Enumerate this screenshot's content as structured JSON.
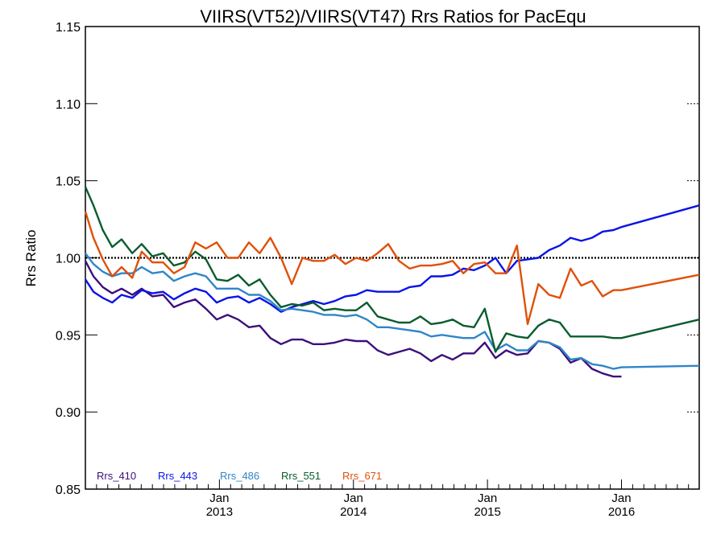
{
  "chart_data": {
    "type": "line",
    "title": "VIIRS(VT52)/VIIRS(VT47)  Rrs Ratios for PacEqu",
    "ylabel": "Rrs Ratio",
    "xlabel": "",
    "ylim": [
      0.85,
      1.15
    ],
    "xlim": [
      2012.0,
      2016.58
    ],
    "yticks": [
      "0.85",
      "0.90",
      "0.95",
      "1.00",
      "1.05",
      "1.10",
      "1.15"
    ],
    "xticks": [
      {
        "month": "Jan",
        "year": "2013"
      },
      {
        "month": "Jan",
        "year": "2014"
      },
      {
        "month": "Jan",
        "year": "2015"
      },
      {
        "month": "Jan",
        "year": "2016"
      }
    ],
    "reference_line": 1.0,
    "legend_placement": "bottom-left",
    "grid": false,
    "series": [
      {
        "name": "Rrs_410",
        "color": "#3d0f7a",
        "points": [
          [
            2012.0,
            0.998
          ],
          [
            2012.06,
            0.988
          ],
          [
            2012.13,
            0.981
          ],
          [
            2012.2,
            0.977
          ],
          [
            2012.27,
            0.98
          ],
          [
            2012.35,
            0.976
          ],
          [
            2012.42,
            0.98
          ],
          [
            2012.5,
            0.975
          ],
          [
            2012.58,
            0.976
          ],
          [
            2012.66,
            0.968
          ],
          [
            2012.74,
            0.971
          ],
          [
            2012.82,
            0.973
          ],
          [
            2012.9,
            0.967
          ],
          [
            2012.98,
            0.96
          ],
          [
            2013.06,
            0.963
          ],
          [
            2013.14,
            0.96
          ],
          [
            2013.22,
            0.955
          ],
          [
            2013.3,
            0.956
          ],
          [
            2013.38,
            0.948
          ],
          [
            2013.46,
            0.944
          ],
          [
            2013.54,
            0.947
          ],
          [
            2013.62,
            0.947
          ],
          [
            2013.7,
            0.944
          ],
          [
            2013.78,
            0.944
          ],
          [
            2013.86,
            0.945
          ],
          [
            2013.94,
            0.947
          ],
          [
            2014.02,
            0.946
          ],
          [
            2014.1,
            0.946
          ],
          [
            2014.18,
            0.94
          ],
          [
            2014.26,
            0.937
          ],
          [
            2014.34,
            0.939
          ],
          [
            2014.42,
            0.941
          ],
          [
            2014.5,
            0.938
          ],
          [
            2014.58,
            0.933
          ],
          [
            2014.66,
            0.937
          ],
          [
            2014.74,
            0.934
          ],
          [
            2014.82,
            0.938
          ],
          [
            2014.9,
            0.938
          ],
          [
            2014.98,
            0.945
          ],
          [
            2015.06,
            0.935
          ],
          [
            2015.14,
            0.94
          ],
          [
            2015.22,
            0.937
          ],
          [
            2015.3,
            0.938
          ],
          [
            2015.38,
            0.946
          ],
          [
            2015.46,
            0.945
          ],
          [
            2015.54,
            0.941
          ],
          [
            2015.62,
            0.932
          ],
          [
            2015.7,
            0.935
          ],
          [
            2015.78,
            0.928
          ],
          [
            2015.86,
            0.925
          ],
          [
            2015.94,
            0.923
          ],
          [
            2016.0,
            0.923
          ]
        ]
      },
      {
        "name": "Rrs_443",
        "color": "#0a14e6",
        "points": [
          [
            2012.0,
            0.986
          ],
          [
            2012.06,
            0.978
          ],
          [
            2012.13,
            0.974
          ],
          [
            2012.2,
            0.971
          ],
          [
            2012.27,
            0.976
          ],
          [
            2012.35,
            0.974
          ],
          [
            2012.42,
            0.979
          ],
          [
            2012.5,
            0.977
          ],
          [
            2012.58,
            0.978
          ],
          [
            2012.66,
            0.973
          ],
          [
            2012.74,
            0.977
          ],
          [
            2012.82,
            0.98
          ],
          [
            2012.9,
            0.978
          ],
          [
            2012.98,
            0.971
          ],
          [
            2013.06,
            0.974
          ],
          [
            2013.14,
            0.975
          ],
          [
            2013.22,
            0.971
          ],
          [
            2013.3,
            0.974
          ],
          [
            2013.38,
            0.97
          ],
          [
            2013.46,
            0.965
          ],
          [
            2013.54,
            0.968
          ],
          [
            2013.62,
            0.97
          ],
          [
            2013.7,
            0.972
          ],
          [
            2013.78,
            0.97
          ],
          [
            2013.86,
            0.972
          ],
          [
            2013.94,
            0.975
          ],
          [
            2014.02,
            0.976
          ],
          [
            2014.1,
            0.979
          ],
          [
            2014.18,
            0.978
          ],
          [
            2014.26,
            0.978
          ],
          [
            2014.34,
            0.978
          ],
          [
            2014.42,
            0.981
          ],
          [
            2014.5,
            0.982
          ],
          [
            2014.58,
            0.988
          ],
          [
            2014.66,
            0.988
          ],
          [
            2014.74,
            0.989
          ],
          [
            2014.82,
            0.993
          ],
          [
            2014.9,
            0.992
          ],
          [
            2014.98,
            0.995
          ],
          [
            2015.06,
            1.0
          ],
          [
            2015.14,
            0.99
          ],
          [
            2015.22,
            0.998
          ],
          [
            2015.3,
            0.999
          ],
          [
            2015.38,
            1.0
          ],
          [
            2015.46,
            1.005
          ],
          [
            2015.54,
            1.008
          ],
          [
            2015.62,
            1.013
          ],
          [
            2015.7,
            1.011
          ],
          [
            2015.78,
            1.013
          ],
          [
            2015.86,
            1.017
          ],
          [
            2015.94,
            1.018
          ],
          [
            2016.0,
            1.02
          ],
          [
            2016.58,
            1.034
          ]
        ]
      },
      {
        "name": "Rrs_486",
        "color": "#2e86c9",
        "points": [
          [
            2012.0,
            1.003
          ],
          [
            2012.06,
            0.996
          ],
          [
            2012.13,
            0.991
          ],
          [
            2012.2,
            0.988
          ],
          [
            2012.27,
            0.99
          ],
          [
            2012.35,
            0.99
          ],
          [
            2012.42,
            0.994
          ],
          [
            2012.5,
            0.99
          ],
          [
            2012.58,
            0.991
          ],
          [
            2012.66,
            0.985
          ],
          [
            2012.74,
            0.988
          ],
          [
            2012.82,
            0.99
          ],
          [
            2012.9,
            0.988
          ],
          [
            2012.98,
            0.98
          ],
          [
            2013.06,
            0.98
          ],
          [
            2013.14,
            0.98
          ],
          [
            2013.22,
            0.976
          ],
          [
            2013.3,
            0.976
          ],
          [
            2013.38,
            0.972
          ],
          [
            2013.46,
            0.966
          ],
          [
            2013.54,
            0.967
          ],
          [
            2013.62,
            0.966
          ],
          [
            2013.7,
            0.965
          ],
          [
            2013.78,
            0.963
          ],
          [
            2013.86,
            0.963
          ],
          [
            2013.94,
            0.962
          ],
          [
            2014.02,
            0.963
          ],
          [
            2014.1,
            0.96
          ],
          [
            2014.18,
            0.955
          ],
          [
            2014.26,
            0.955
          ],
          [
            2014.34,
            0.954
          ],
          [
            2014.42,
            0.953
          ],
          [
            2014.5,
            0.952
          ],
          [
            2014.58,
            0.949
          ],
          [
            2014.66,
            0.95
          ],
          [
            2014.74,
            0.949
          ],
          [
            2014.82,
            0.948
          ],
          [
            2014.9,
            0.948
          ],
          [
            2014.98,
            0.952
          ],
          [
            2015.06,
            0.94
          ],
          [
            2015.14,
            0.944
          ],
          [
            2015.22,
            0.94
          ],
          [
            2015.3,
            0.94
          ],
          [
            2015.38,
            0.946
          ],
          [
            2015.46,
            0.945
          ],
          [
            2015.54,
            0.942
          ],
          [
            2015.62,
            0.934
          ],
          [
            2015.7,
            0.935
          ],
          [
            2015.78,
            0.931
          ],
          [
            2015.86,
            0.93
          ],
          [
            2015.94,
            0.928
          ],
          [
            2016.0,
            0.929
          ],
          [
            2016.58,
            0.93
          ]
        ]
      },
      {
        "name": "Rrs_551",
        "color": "#0a5c2e",
        "points": [
          [
            2012.0,
            1.046
          ],
          [
            2012.06,
            1.034
          ],
          [
            2012.13,
            1.018
          ],
          [
            2012.2,
            1.007
          ],
          [
            2012.27,
            1.012
          ],
          [
            2012.35,
            1.003
          ],
          [
            2012.42,
            1.009
          ],
          [
            2012.5,
            1.001
          ],
          [
            2012.58,
            1.003
          ],
          [
            2012.66,
            0.995
          ],
          [
            2012.74,
            0.997
          ],
          [
            2012.82,
            1.004
          ],
          [
            2012.9,
            0.999
          ],
          [
            2012.98,
            0.986
          ],
          [
            2013.06,
            0.985
          ],
          [
            2013.14,
            0.989
          ],
          [
            2013.22,
            0.982
          ],
          [
            2013.3,
            0.986
          ],
          [
            2013.38,
            0.976
          ],
          [
            2013.46,
            0.968
          ],
          [
            2013.54,
            0.97
          ],
          [
            2013.62,
            0.969
          ],
          [
            2013.7,
            0.971
          ],
          [
            2013.78,
            0.966
          ],
          [
            2013.86,
            0.967
          ],
          [
            2013.94,
            0.966
          ],
          [
            2014.02,
            0.966
          ],
          [
            2014.1,
            0.971
          ],
          [
            2014.18,
            0.962
          ],
          [
            2014.26,
            0.96
          ],
          [
            2014.34,
            0.958
          ],
          [
            2014.42,
            0.958
          ],
          [
            2014.5,
            0.962
          ],
          [
            2014.58,
            0.957
          ],
          [
            2014.66,
            0.958
          ],
          [
            2014.74,
            0.96
          ],
          [
            2014.82,
            0.956
          ],
          [
            2014.9,
            0.955
          ],
          [
            2014.98,
            0.967
          ],
          [
            2015.06,
            0.939
          ],
          [
            2015.14,
            0.951
          ],
          [
            2015.22,
            0.949
          ],
          [
            2015.3,
            0.948
          ],
          [
            2015.38,
            0.956
          ],
          [
            2015.46,
            0.96
          ],
          [
            2015.54,
            0.958
          ],
          [
            2015.62,
            0.949
          ],
          [
            2015.7,
            0.949
          ],
          [
            2015.78,
            0.949
          ],
          [
            2015.86,
            0.949
          ],
          [
            2015.94,
            0.948
          ],
          [
            2016.0,
            0.948
          ],
          [
            2016.58,
            0.96
          ]
        ]
      },
      {
        "name": "Rrs_671",
        "color": "#e0500a",
        "points": [
          [
            2012.0,
            1.03
          ],
          [
            2012.06,
            1.013
          ],
          [
            2012.13,
            0.999
          ],
          [
            2012.2,
            0.988
          ],
          [
            2012.27,
            0.994
          ],
          [
            2012.35,
            0.987
          ],
          [
            2012.42,
            1.004
          ],
          [
            2012.5,
            0.997
          ],
          [
            2012.58,
            0.997
          ],
          [
            2012.66,
            0.99
          ],
          [
            2012.74,
            0.994
          ],
          [
            2012.82,
            1.01
          ],
          [
            2012.9,
            1.006
          ],
          [
            2012.98,
            1.01
          ],
          [
            2013.06,
            1.0
          ],
          [
            2013.14,
            1.0
          ],
          [
            2013.22,
            1.01
          ],
          [
            2013.3,
            1.003
          ],
          [
            2013.38,
            1.013
          ],
          [
            2013.46,
            1.0
          ],
          [
            2013.54,
            0.983
          ],
          [
            2013.62,
            1.0
          ],
          [
            2013.7,
            0.998
          ],
          [
            2013.78,
            0.998
          ],
          [
            2013.86,
            1.002
          ],
          [
            2013.94,
            0.996
          ],
          [
            2014.02,
            1.0
          ],
          [
            2014.1,
            0.998
          ],
          [
            2014.18,
            1.003
          ],
          [
            2014.26,
            1.009
          ],
          [
            2014.34,
            0.998
          ],
          [
            2014.42,
            0.993
          ],
          [
            2014.5,
            0.995
          ],
          [
            2014.58,
            0.995
          ],
          [
            2014.66,
            0.996
          ],
          [
            2014.74,
            0.998
          ],
          [
            2014.82,
            0.99
          ],
          [
            2014.9,
            0.996
          ],
          [
            2014.98,
            0.997
          ],
          [
            2015.06,
            0.99
          ],
          [
            2015.14,
            0.99
          ],
          [
            2015.22,
            1.008
          ],
          [
            2015.3,
            0.957
          ],
          [
            2015.38,
            0.983
          ],
          [
            2015.46,
            0.976
          ],
          [
            2015.54,
            0.974
          ],
          [
            2015.62,
            0.993
          ],
          [
            2015.7,
            0.982
          ],
          [
            2015.78,
            0.985
          ],
          [
            2015.86,
            0.975
          ],
          [
            2015.94,
            0.979
          ],
          [
            2016.0,
            0.979
          ],
          [
            2016.58,
            0.989
          ]
        ]
      }
    ]
  }
}
